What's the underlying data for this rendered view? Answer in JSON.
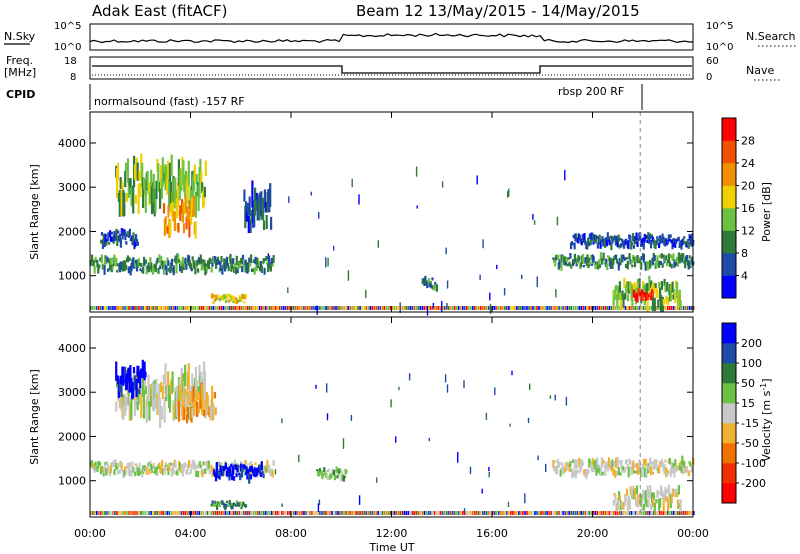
{
  "header": {
    "station": "Adak East (fitACF)",
    "beam_dates": "Beam 12 13/May/2015 - 14/May/2015"
  },
  "panels": {
    "nsky": {
      "left_label": "N.Sky",
      "left_ticks": [
        "10^5",
        "10^0"
      ],
      "right_label": "N.Search",
      "right_ticks": [
        "10^5",
        "10^0"
      ]
    },
    "freq": {
      "left_label_1": "Freq.",
      "left_label_2": "[MHz]",
      "left_ticks": [
        "18",
        "8"
      ],
      "right_label": "Nave",
      "right_ticks": [
        "60",
        "0"
      ]
    },
    "cpid": {
      "label": "CPID",
      "mode_1": "normalsound (fast) -157 RF",
      "mode_2": "rbsp 200 RF"
    }
  },
  "x_axis": {
    "label": "Time UT",
    "ticks": [
      "00:00",
      "04:00",
      "08:00",
      "12:00",
      "16:00",
      "20:00",
      "00:00"
    ]
  },
  "chart_data": [
    {
      "type": "heatmap",
      "title": "",
      "xlabel": "",
      "ylabel": "Slant Range [km]",
      "y_ticks": [
        "1000",
        "2000",
        "3000",
        "4000"
      ],
      "xlim": [
        0,
        24
      ],
      "ylim": [
        180,
        4700
      ],
      "colorbar": {
        "label": "Power [dB]",
        "ticks": [
          "4",
          "8",
          "12",
          "16",
          "20",
          "24",
          "28"
        ],
        "colors": [
          "#0000ff",
          "#1e4aa8",
          "#2f7a3a",
          "#6bc142",
          "#f0d000",
          "#f09000",
          "#f05000",
          "#ff0000"
        ]
      },
      "bands": [
        {
          "t0": 0.0,
          "t1": 7.3,
          "r0": 1100,
          "r1": 1400,
          "level": 2
        },
        {
          "t0": 1.0,
          "t1": 4.6,
          "r0": 2600,
          "r1": 3500,
          "level": 3
        },
        {
          "t0": 2.9,
          "t1": 4.2,
          "r0": 2000,
          "r1": 2600,
          "level": 5
        },
        {
          "t0": 0.4,
          "t1": 1.9,
          "r0": 1700,
          "r1": 2000,
          "level": 1
        },
        {
          "t0": 6.1,
          "t1": 7.2,
          "r0": 2100,
          "r1": 2900,
          "level": 1
        },
        {
          "t0": 4.8,
          "t1": 6.2,
          "r0": 400,
          "r1": 560,
          "level": 4
        },
        {
          "t0": 13.2,
          "t1": 13.8,
          "r0": 700,
          "r1": 950,
          "level": 2
        },
        {
          "t0": 18.4,
          "t1": 24.0,
          "r0": 1200,
          "r1": 1450,
          "level": 2
        },
        {
          "t0": 19.1,
          "t1": 24.0,
          "r0": 1650,
          "r1": 1900,
          "level": 1
        },
        {
          "t0": 20.8,
          "t1": 23.5,
          "r0": 350,
          "r1": 850,
          "level": 3
        },
        {
          "t0": 21.6,
          "t1": 22.4,
          "r0": 450,
          "r1": 700,
          "level": 7
        }
      ]
    },
    {
      "type": "heatmap",
      "title": "",
      "xlabel": "Time UT",
      "ylabel": "Slant Range [km]",
      "y_ticks": [
        "1000",
        "2000",
        "3000",
        "4000"
      ],
      "xlim": [
        0,
        24
      ],
      "ylim": [
        180,
        4700
      ],
      "colorbar": {
        "label": "Velocity [m s^-1]",
        "ticks": [
          "200",
          "100",
          "50",
          "15",
          "-15",
          "-50",
          "-100",
          "-200"
        ],
        "colors": [
          "#0000ff",
          "#1e4aa8",
          "#2f7a3a",
          "#6bc142",
          "#c8c8c8",
          "#f0b030",
          "#f07000",
          "#f03000",
          "#ff0000"
        ]
      },
      "bands": [
        {
          "t0": 0.0,
          "t1": 7.3,
          "r0": 1150,
          "r1": 1400,
          "level": 4
        },
        {
          "t0": 1.0,
          "t1": 4.6,
          "r0": 2500,
          "r1": 3400,
          "level": 4
        },
        {
          "t0": 1.0,
          "t1": 2.2,
          "r0": 3000,
          "r1": 3550,
          "level": 0
        },
        {
          "t0": 4.9,
          "t1": 6.9,
          "r0": 1050,
          "r1": 1350,
          "level": 0
        },
        {
          "t0": 4.8,
          "t1": 6.2,
          "r0": 380,
          "r1": 520,
          "level": 2
        },
        {
          "t0": 9.0,
          "t1": 10.2,
          "r0": 1050,
          "r1": 1250,
          "level": 3
        },
        {
          "t0": 18.4,
          "t1": 24.0,
          "r0": 1150,
          "r1": 1450,
          "level": 4
        },
        {
          "t0": 20.8,
          "t1": 23.5,
          "r0": 400,
          "r1": 800,
          "level": 4
        },
        {
          "t0": 3.5,
          "t1": 5.0,
          "r0": 2400,
          "r1": 3000,
          "level": 5
        }
      ]
    }
  ]
}
